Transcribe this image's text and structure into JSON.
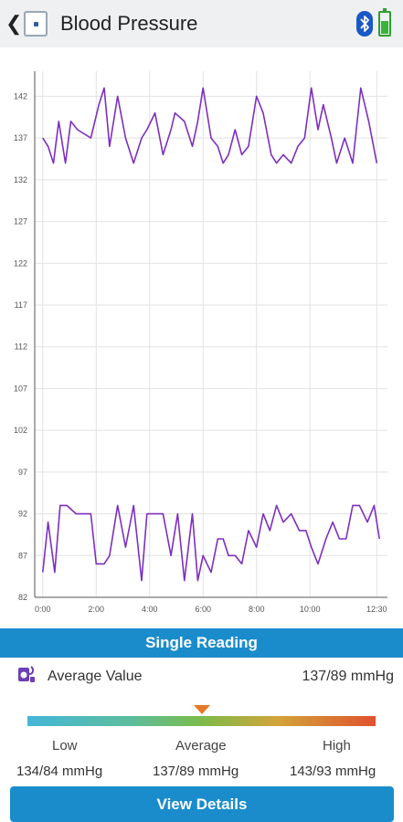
{
  "header": {
    "back_glyph": "❮",
    "title": "Blood Pressure",
    "icons": [
      "app-icon",
      "bluetooth-icon",
      "battery-icon"
    ]
  },
  "chart_data": {
    "type": "line",
    "y_ticks": [
      "142",
      "137",
      "132",
      "127",
      "122",
      "117",
      "112",
      "107",
      "102",
      "97",
      "92",
      "87",
      "82"
    ],
    "y_tick_values": [
      142,
      137,
      132,
      127,
      122,
      117,
      112,
      107,
      102,
      97,
      92,
      87,
      82
    ],
    "ylim": [
      82,
      145
    ],
    "x_ticks": [
      "0:00",
      "2:00",
      "4:00",
      "6:00",
      "8:00",
      "10:00",
      "12:30"
    ],
    "x_tick_values": [
      0,
      2,
      4,
      6,
      8,
      10,
      12.5
    ],
    "xlim": [
      -0.3,
      12.9
    ],
    "grid": true,
    "line_color": "#7d2fc0",
    "series": [
      {
        "x": [
          0,
          0.2,
          0.4,
          0.6,
          0.85,
          1.05,
          1.3,
          1.8,
          2.1,
          2.3,
          2.5,
          2.8,
          3.1,
          3.4,
          3.7,
          3.9,
          4.2,
          4.5,
          4.8,
          4.95,
          5.3,
          5.6,
          5.8,
          6.0,
          6.3,
          6.55,
          6.75,
          6.95,
          7.2,
          7.45,
          7.7,
          8.0,
          8.25,
          8.55,
          8.75,
          9.0,
          9.3,
          9.55,
          9.8,
          10.05,
          10.3,
          10.5,
          10.8,
          11.0,
          11.3,
          11.6,
          11.9,
          12.2,
          12.5
        ],
        "values": [
          137,
          136,
          134,
          139,
          134,
          139,
          138,
          137,
          141,
          143,
          136,
          142,
          137,
          134,
          137,
          138,
          140,
          135,
          138,
          140,
          139,
          136,
          139,
          143,
          137,
          136,
          134,
          135,
          138,
          135,
          136,
          142,
          140,
          135,
          134,
          135,
          134,
          136,
          137,
          143,
          138,
          141,
          137,
          134,
          137,
          134,
          143,
          139,
          134
        ]
      },
      {
        "x": [
          0,
          0.2,
          0.45,
          0.65,
          0.9,
          1.25,
          1.8,
          2.0,
          2.3,
          2.5,
          2.8,
          3.1,
          3.4,
          3.7,
          3.9,
          4.2,
          4.5,
          4.8,
          5.05,
          5.3,
          5.6,
          5.8,
          6.0,
          6.3,
          6.55,
          6.75,
          6.95,
          7.2,
          7.45,
          7.7,
          8.0,
          8.25,
          8.5,
          8.75,
          9.0,
          9.3,
          9.6,
          9.85,
          10.05,
          10.3,
          10.6,
          10.85,
          11.1,
          11.35,
          11.6,
          11.85,
          12.15,
          12.4,
          12.6
        ],
        "values": [
          85,
          91,
          85,
          93,
          93,
          92,
          92,
          86,
          86,
          87,
          93,
          88,
          93,
          84,
          92,
          92,
          92,
          87,
          92,
          84,
          92,
          84,
          87,
          85,
          89,
          89,
          87,
          87,
          86,
          90,
          88,
          92,
          90,
          93,
          91,
          92,
          90,
          90,
          88,
          86,
          89,
          91,
          89,
          89,
          93,
          93,
          91,
          93,
          89
        ]
      }
    ]
  },
  "single_reading": {
    "label": "Single Reading"
  },
  "average": {
    "label": "Average Value",
    "value": "137/89 mmHg",
    "icon": "blood-pressure-monitor-icon"
  },
  "scale": {
    "low_label": "Low",
    "low_value": "134/84 mmHg",
    "average_label": "Average",
    "average_value": "137/89 mmHg",
    "high_label": "High",
    "high_value": "143/93 mmHg",
    "marker_color": "#e7782a"
  },
  "actions": {
    "view_details_label": "View Details"
  },
  "colors": {
    "accent": "#1a8ccc",
    "line": "#7d2fc0"
  }
}
